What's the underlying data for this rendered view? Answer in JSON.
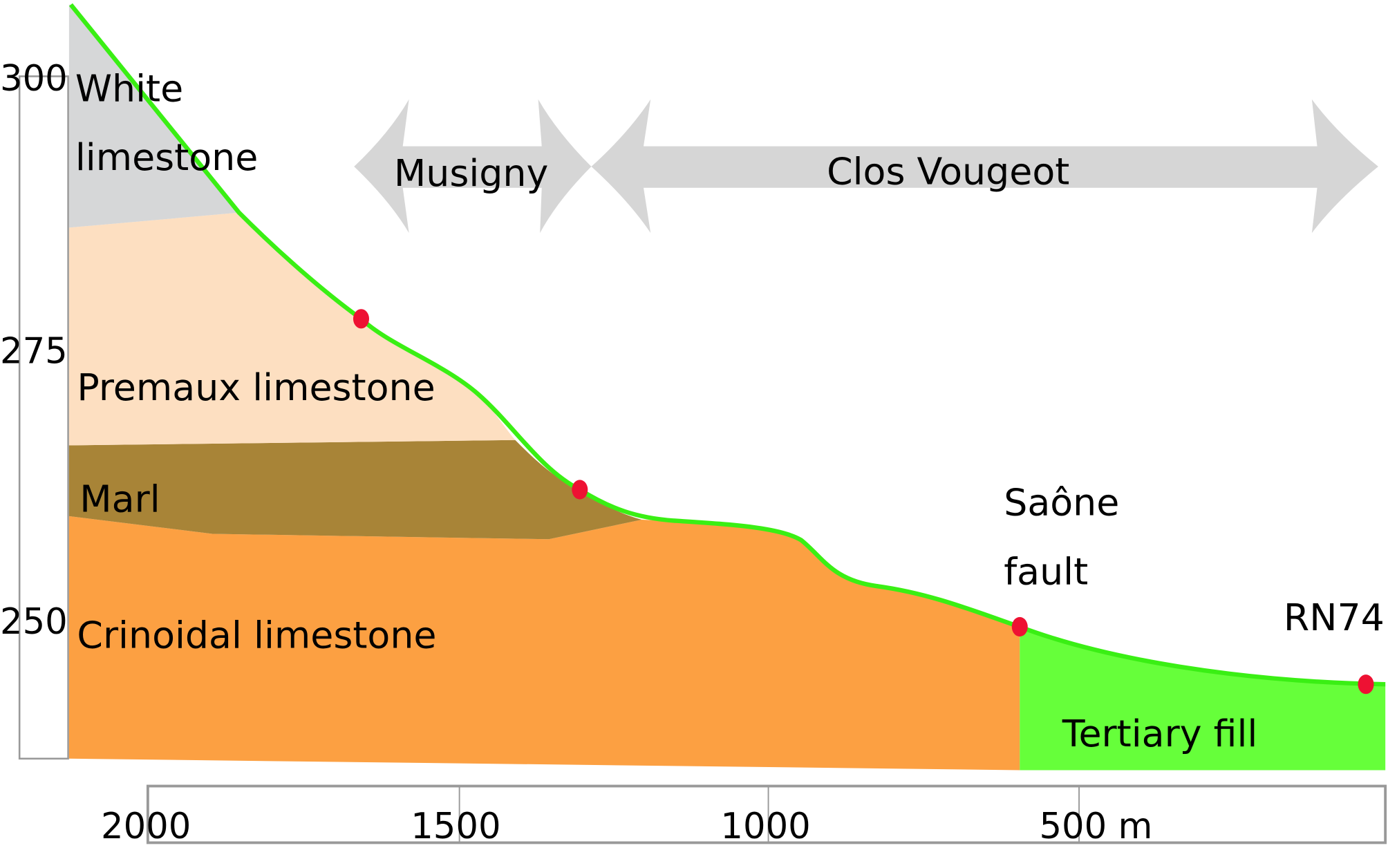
{
  "y_axis": {
    "ticks": [
      "300",
      "275",
      "250"
    ]
  },
  "x_axis": {
    "ticks": [
      "2000",
      "1500",
      "1000",
      "500 m"
    ]
  },
  "layers": {
    "white_limestone": [
      "White",
      "limestone"
    ],
    "premaux": "Premaux limestone",
    "marl": "Marl",
    "crinoidal": "Crinoidal limestone",
    "tertiary": "Tertiary fill"
  },
  "zones": {
    "musigny": "Musigny",
    "clos_vougeot": "Clos Vougeot"
  },
  "markers": {
    "saone_fault": [
      "Saône",
      "fault"
    ],
    "rn74": "RN74"
  },
  "colors": {
    "white_limestone": "#d6d7d8",
    "premaux": "#fddfc1",
    "marl": "#a88437",
    "crinoidal": "#fca042",
    "tertiary": "#66ff3a",
    "surface": "#3aef14",
    "marker": "#ee1133",
    "arrow": "#d6d6d6"
  }
}
